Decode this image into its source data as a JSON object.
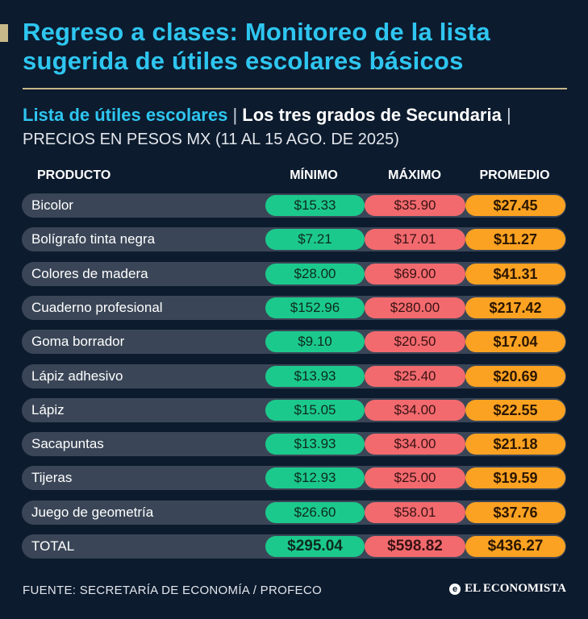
{
  "title": "Regreso a clases: Monitoreo de la lista sugerida de útiles escolares básicos",
  "subtitle": {
    "part1": "Lista de útiles escolares",
    "sep1": " | ",
    "part2": "Los tres grados de Secundaria",
    "sep2": " | ",
    "part3": "PRECIOS EN PESOS MX (11 AL 15 AGO. DE 2025)"
  },
  "columns": {
    "product": "PRODUCTO",
    "min": "MÍNIMO",
    "max": "MÁXIMO",
    "avg": "PROMEDIO"
  },
  "chart_data": {
    "type": "table",
    "title": "Regreso a clases: Monitoreo de la lista sugerida de útiles escolares básicos",
    "rows": [
      {
        "product": "Bicolor",
        "min": "$15.33",
        "max": "$35.90",
        "avg": "$27.45"
      },
      {
        "product": "Bolígrafo tinta negra",
        "min": "$7.21",
        "max": "$17.01",
        "avg": "$11.27"
      },
      {
        "product": "Colores de madera",
        "min": "$28.00",
        "max": "$69.00",
        "avg": "$41.31"
      },
      {
        "product": "Cuaderno profesional",
        "min": "$152.96",
        "max": "$280.00",
        "avg": "$217.42"
      },
      {
        "product": "Goma borrador",
        "min": "$9.10",
        "max": "$20.50",
        "avg": "$17.04"
      },
      {
        "product": "Lápiz adhesivo",
        "min": "$13.93",
        "max": "$25.40",
        "avg": "$20.69"
      },
      {
        "product": "Lápiz",
        "min": "$15.05",
        "max": "$34.00",
        "avg": "$22.55"
      },
      {
        "product": "Sacapuntas",
        "min": "$13.93",
        "max": "$34.00",
        "avg": "$21.18"
      },
      {
        "product": "Tijeras",
        "min": "$12.93",
        "max": "$25.00",
        "avg": "$19.59"
      },
      {
        "product": "Juego de geometría",
        "min": "$26.60",
        "max": "$58.01",
        "avg": "$37.76"
      }
    ],
    "total": {
      "product": "TOTAL",
      "min": "$295.04",
      "max": "$598.82",
      "avg": "$436.27"
    }
  },
  "footer": {
    "source": "FUENTE: SECRETARÍA DE ECONOMÍA / PROFECO",
    "brand": "EL ECONOMISTA",
    "brand_mark": "e"
  },
  "colors": {
    "background": "#0d1b2e",
    "accent": "#2ec6f0",
    "gold": "#c8b98a",
    "min": "#1cc98c",
    "max": "#f26a6e",
    "avg": "#fba222"
  }
}
